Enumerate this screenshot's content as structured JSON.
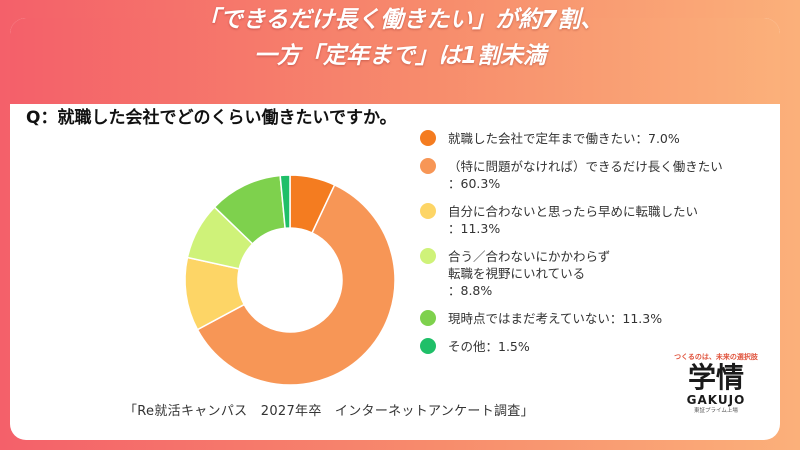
{
  "headline": {
    "line1": "「できるだけ長く働きたい」が約7割、",
    "line2": "一方「定年まで」は1割未満"
  },
  "question": "Q：就職した会社でどのくらい働きたいですか。",
  "source": "「Re就活キャンパス　2027年卒　インターネットアンケート調査」",
  "logo": {
    "tagline": "つくるのは、未来の選択肢",
    "mark": "学情",
    "romaji": "GAKUJO",
    "listing": "東証プライム上場"
  },
  "legend": [
    {
      "lines": [
        "就職した会社で定年まで働きたい：7.0%"
      ]
    },
    {
      "lines": [
        "（特に問題がなければ）できるだけ長く働きたい",
        "：60.3%"
      ]
    },
    {
      "lines": [
        "自分に合わないと思ったら早めに転職したい",
        "：11.3%"
      ]
    },
    {
      "lines": [
        "合う／合わないにかかわらず",
        "転職を視野にいれている",
        "：8.8%"
      ]
    },
    {
      "lines": [
        "現時点ではまだ考えていない：11.3%"
      ]
    },
    {
      "lines": [
        "その他：1.5%"
      ]
    }
  ],
  "chart_data": {
    "type": "pie",
    "donut": true,
    "legend_position": "right",
    "categories": [
      "就職した会社で定年まで働きたい",
      "（特に問題がなければ）できるだけ長く働きたい",
      "自分に合わないと思ったら早めに転職したい",
      "合う／合わないにかかわらず転職を視野にいれている",
      "現時点ではまだ考えていない",
      "その他"
    ],
    "values": [
      7.0,
      60.3,
      11.3,
      8.8,
      11.3,
      1.5
    ],
    "unit": "%",
    "colors": [
      "#f47c20",
      "#f79656",
      "#fdd566",
      "#cff279",
      "#7ed14d",
      "#1fbf68"
    ]
  }
}
